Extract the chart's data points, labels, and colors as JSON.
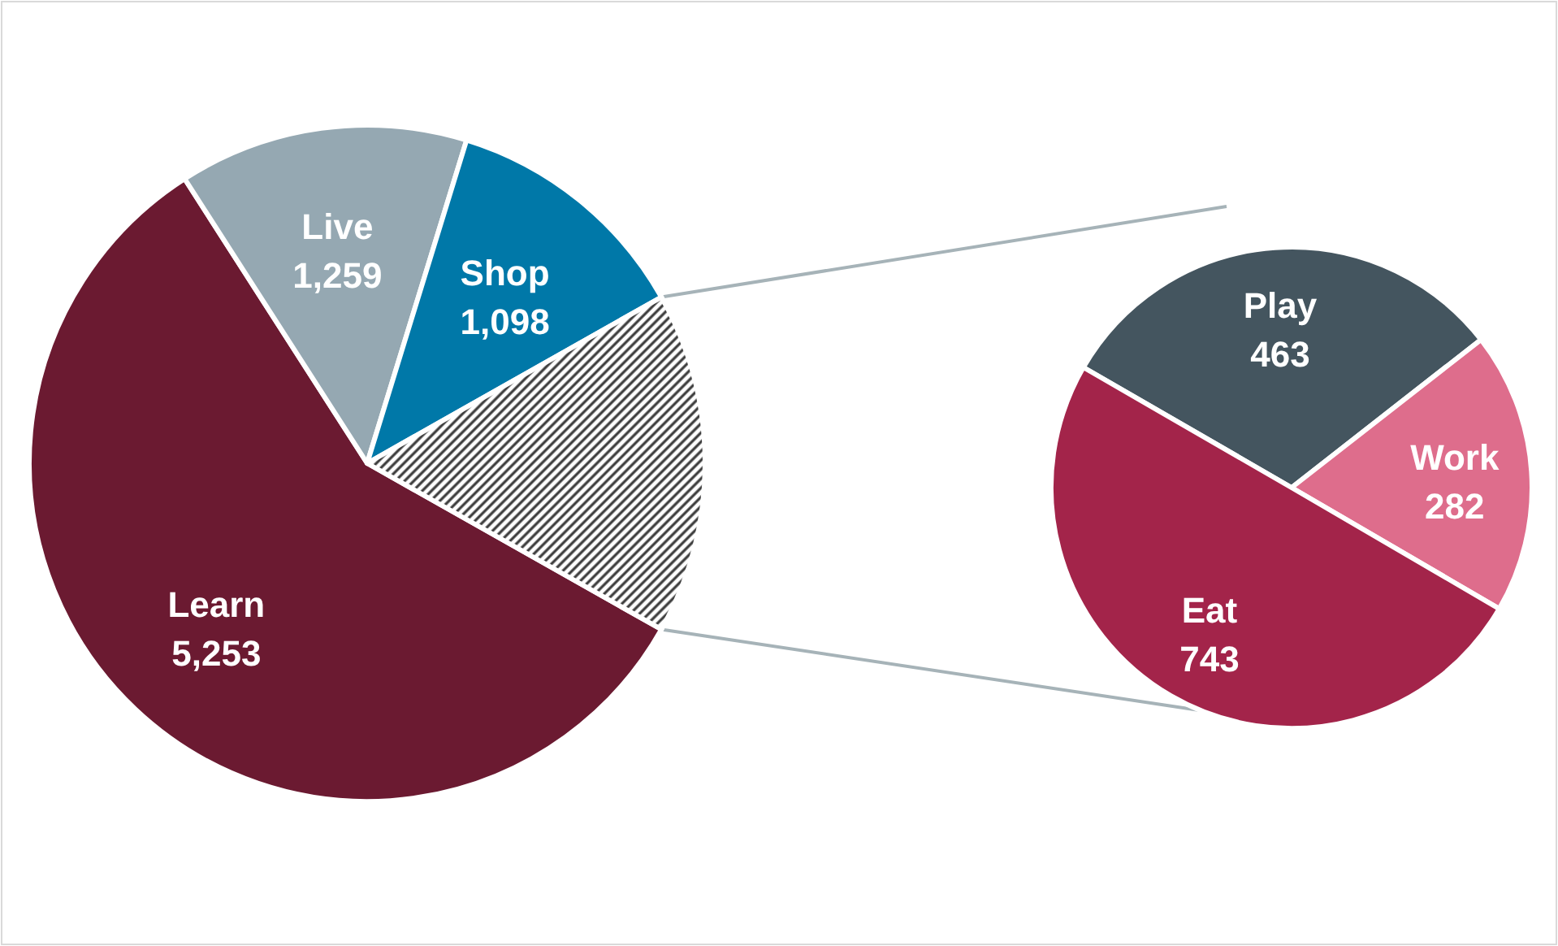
{
  "chart_data": [
    {
      "type": "pie",
      "categories": [
        "Learn",
        "Live",
        "Shop",
        null
      ],
      "values": [
        5253,
        1259,
        1098,
        1488
      ],
      "value_labels": [
        "5,253",
        "1,259",
        "1,098",
        null
      ],
      "colors": [
        "#6b1a31",
        "#95a8b2",
        "#0078a8",
        "#3a3a3a"
      ]
    },
    {
      "type": "pie",
      "categories": [
        "Play",
        "Work",
        "Eat"
      ],
      "values": [
        463,
        282,
        743
      ],
      "value_labels": [
        "463",
        "282",
        "743"
      ],
      "colors": [
        "#44555f",
        "#de6d8c",
        "#a3244a"
      ]
    }
  ]
}
